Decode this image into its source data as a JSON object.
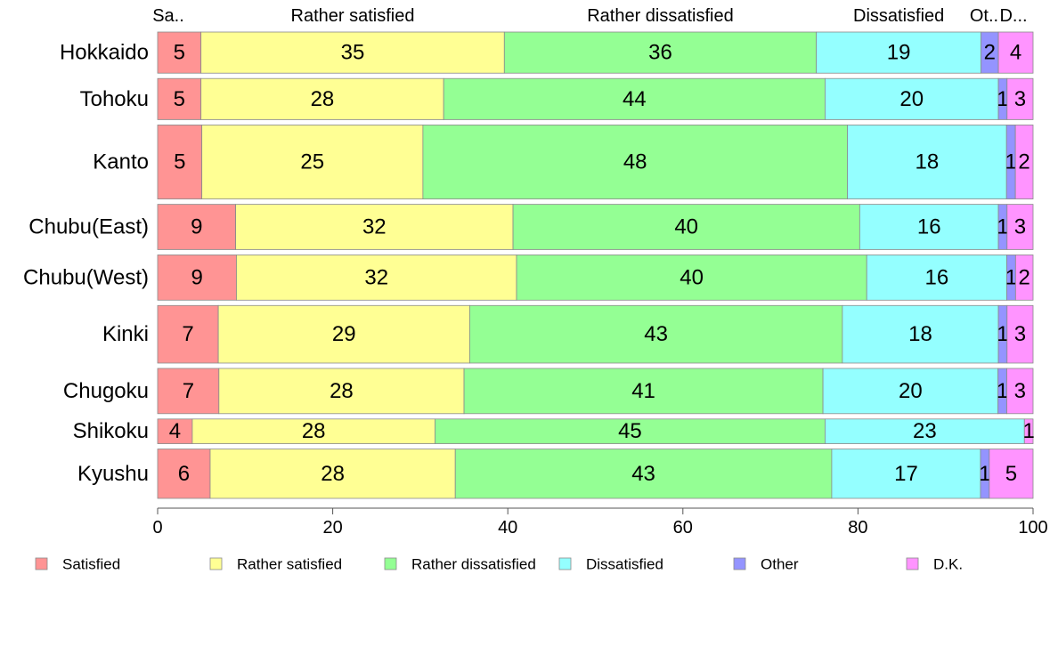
{
  "chart_data": {
    "type": "bar",
    "orientation": "horizontal",
    "stacked": true,
    "categories": [
      "Hokkaido",
      "Tohoku",
      "Kanto",
      "Chubu(East)",
      "Chubu(West)",
      "Kinki",
      "Chugoku",
      "Shikoku",
      "Kyushu"
    ],
    "series": [
      {
        "name": "Satisfied",
        "color": "#ff9494",
        "values": [
          5,
          5,
          5,
          9,
          9,
          7,
          7,
          4,
          6
        ]
      },
      {
        "name": "Rather satisfied",
        "color": "#ffff94",
        "values": [
          35,
          28,
          25,
          32,
          32,
          29,
          28,
          28,
          28
        ]
      },
      {
        "name": "Rather dissatisfied",
        "color": "#94ff94",
        "values": [
          36,
          44,
          48,
          40,
          40,
          43,
          41,
          45,
          43
        ]
      },
      {
        "name": "Dissatisfied",
        "color": "#94ffff",
        "values": [
          19,
          20,
          18,
          16,
          16,
          18,
          20,
          23,
          17
        ]
      },
      {
        "name": "Other",
        "color": "#9494ff",
        "values": [
          2,
          1,
          1,
          1,
          1,
          1,
          1,
          0,
          1
        ]
      },
      {
        "name": "D.K.",
        "color": "#ff94ff",
        "values": [
          4,
          3,
          2,
          3,
          2,
          3,
          3,
          1,
          5
        ]
      }
    ],
    "top_labels": [
      "Sa..",
      "Rather satisfied",
      "Rather dissatisfied",
      "Dissatisfied",
      "Ot..",
      "D..."
    ],
    "value_labels": [
      [
        "5",
        "35",
        "36",
        "19",
        "2",
        "4"
      ],
      [
        "5",
        "28",
        "44",
        "20",
        "1",
        "3"
      ],
      [
        "5",
        "25",
        "48",
        "18",
        "1",
        "2"
      ],
      [
        "9",
        "32",
        "40",
        "16",
        "1",
        "3"
      ],
      [
        "9",
        "32",
        "40",
        "16",
        "1",
        "2"
      ],
      [
        "7",
        "29",
        "43",
        "18",
        "1",
        "3"
      ],
      [
        "7",
        "28",
        "41",
        "20",
        "1",
        "3"
      ],
      [
        "4",
        "28",
        "45",
        "23",
        "",
        "1"
      ],
      [
        "6",
        "28",
        "43",
        "17",
        "1",
        "5"
      ]
    ],
    "row_weights": [
      1.0,
      1.0,
      1.8,
      1.1,
      1.1,
      1.4,
      1.1,
      0.6,
      1.2
    ],
    "xlim": [
      0,
      100
    ],
    "xticks": [
      0,
      20,
      40,
      60,
      80,
      100
    ],
    "xtick_labels": [
      "0",
      "20",
      "40",
      "60",
      "80",
      "100"
    ],
    "legend": [
      "Satisfied",
      "Rather satisfied",
      "Rather dissatisfied",
      "Dissatisfied",
      "Other",
      "D.K."
    ],
    "legend_position": "bottom",
    "grid": false
  }
}
